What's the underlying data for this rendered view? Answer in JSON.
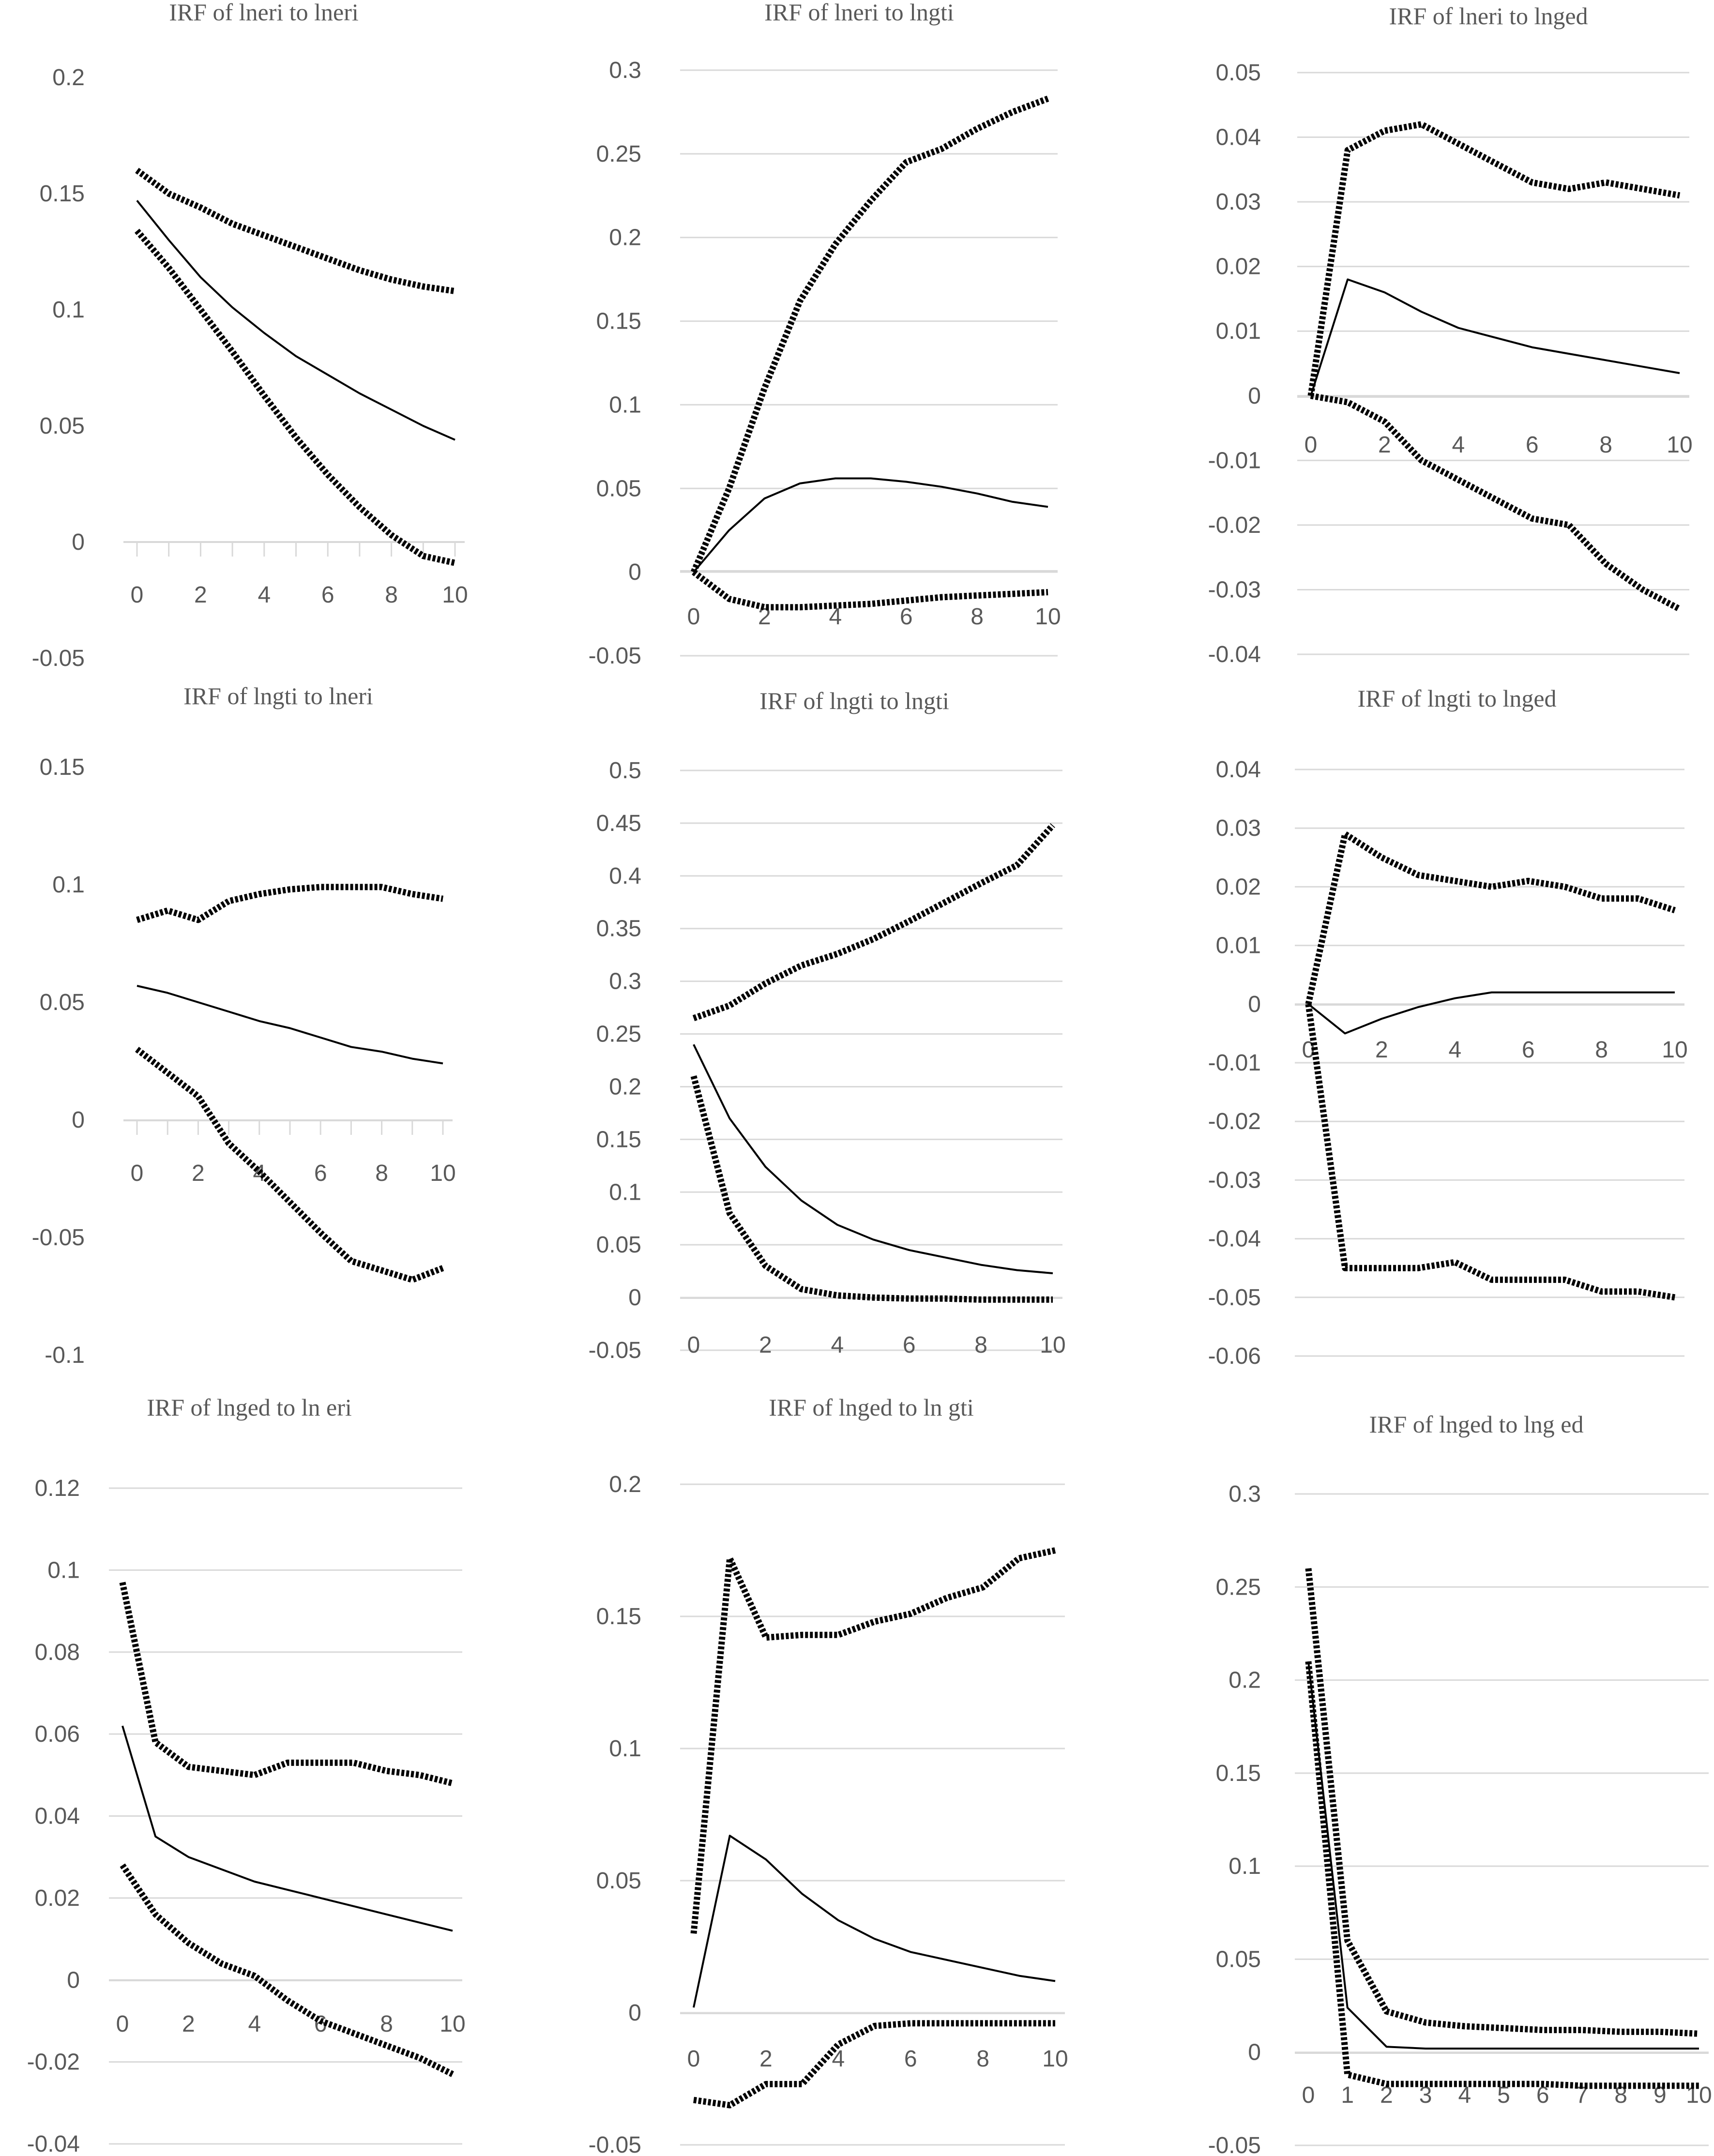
{
  "figure": {
    "accent_color": "#000000",
    "grid_color": "#d9d9d9",
    "tick_color": "#595959"
  },
  "chart_data": [
    {
      "type": "line",
      "title": "IRF of lneri to lneri",
      "x": [
        0,
        1,
        2,
        3,
        4,
        5,
        6,
        7,
        8,
        9,
        10
      ],
      "xticks": [
        0,
        2,
        4,
        6,
        8,
        10
      ],
      "ylim": [
        -0.05,
        0.2
      ],
      "yticks": [
        -0.05,
        0,
        0.05,
        0.1,
        0.15,
        0.2
      ],
      "ytick_labels": [
        "-0.05",
        "0",
        "0.05",
        "0.1",
        "0.15",
        "0.2"
      ],
      "grid": false,
      "series": [
        {
          "style": "solid",
          "values": [
            0.147,
            0.13,
            0.114,
            0.101,
            0.09,
            0.08,
            0.072,
            0.064,
            0.057,
            0.05,
            0.044
          ]
        },
        {
          "style": "dotted",
          "values": [
            0.16,
            0.15,
            0.144,
            0.137,
            0.132,
            0.127,
            0.122,
            0.117,
            0.113,
            0.11,
            0.108
          ]
        },
        {
          "style": "dotted",
          "values": [
            0.134,
            0.118,
            0.1,
            0.082,
            0.063,
            0.045,
            0.029,
            0.015,
            0.003,
            -0.006,
            -0.009
          ]
        }
      ]
    },
    {
      "type": "line",
      "title": "IRF of lneri to lngti",
      "x": [
        0,
        1,
        2,
        3,
        4,
        5,
        6,
        7,
        8,
        9,
        10
      ],
      "xticks": [
        0,
        2,
        4,
        6,
        8,
        10
      ],
      "ylim": [
        -0.05,
        0.3
      ],
      "yticks": [
        -0.05,
        0,
        0.05,
        0.1,
        0.15,
        0.2,
        0.25,
        0.3
      ],
      "ytick_labels": [
        "-0.05",
        "0",
        "0.05",
        "0.1",
        "0.15",
        "0.2",
        "0.25",
        "0.3"
      ],
      "grid": true,
      "series": [
        {
          "style": "solid",
          "values": [
            0,
            0.025,
            0.044,
            0.053,
            0.056,
            0.056,
            0.054,
            0.051,
            0.047,
            0.042,
            0.039
          ]
        },
        {
          "style": "dotted",
          "values": [
            0,
            0.05,
            0.11,
            0.162,
            0.196,
            0.222,
            0.245,
            0.253,
            0.265,
            0.275,
            0.283
          ]
        },
        {
          "style": "dotted",
          "values": [
            0,
            -0.016,
            -0.021,
            -0.021,
            -0.02,
            -0.019,
            -0.017,
            -0.015,
            -0.014,
            -0.013,
            -0.012
          ]
        }
      ]
    },
    {
      "type": "line",
      "title": "IRF of lneri to lnged",
      "x": [
        0,
        1,
        2,
        3,
        4,
        5,
        6,
        7,
        8,
        9,
        10
      ],
      "xticks": [
        0,
        2,
        4,
        6,
        8,
        10
      ],
      "ylim": [
        -0.04,
        0.05
      ],
      "yticks": [
        -0.04,
        -0.03,
        -0.02,
        -0.01,
        0,
        0.01,
        0.02,
        0.03,
        0.04,
        0.05
      ],
      "ytick_labels": [
        "-0.04",
        "-0.03",
        "-0.02",
        "-0.01",
        "0",
        "0.01",
        "0.02",
        "0.03",
        "0.04",
        "0.05"
      ],
      "grid": true,
      "series": [
        {
          "style": "solid",
          "values": [
            0,
            0.018,
            0.016,
            0.013,
            0.0105,
            0.009,
            0.0075,
            0.0065,
            0.0055,
            0.0045,
            0.0035
          ]
        },
        {
          "style": "dotted",
          "values": [
            0,
            0.038,
            0.041,
            0.042,
            0.039,
            0.036,
            0.033,
            0.032,
            0.033,
            0.032,
            0.031
          ]
        },
        {
          "style": "dotted",
          "values": [
            0,
            -0.001,
            -0.004,
            -0.01,
            -0.013,
            -0.016,
            -0.019,
            -0.02,
            -0.026,
            -0.03,
            -0.033
          ]
        }
      ]
    },
    {
      "type": "line",
      "title": "IRF of lngti  to lneri",
      "x": [
        0,
        1,
        2,
        3,
        4,
        5,
        6,
        7,
        8,
        9,
        10
      ],
      "xticks": [
        0,
        2,
        4,
        6,
        8,
        10
      ],
      "ylim": [
        -0.1,
        0.15
      ],
      "yticks": [
        -0.1,
        -0.05,
        0,
        0.05,
        0.1,
        0.15
      ],
      "ytick_labels": [
        "-0.1",
        "-0.05",
        "0",
        "0.05",
        "0.1",
        "0.15"
      ],
      "grid": false,
      "series": [
        {
          "style": "solid",
          "values": [
            0.057,
            0.054,
            0.05,
            0.046,
            0.042,
            0.039,
            0.035,
            0.031,
            0.029,
            0.026,
            0.024
          ]
        },
        {
          "style": "dotted",
          "values": [
            0.085,
            0.089,
            0.085,
            0.093,
            0.096,
            0.098,
            0.099,
            0.099,
            0.099,
            0.096,
            0.094
          ]
        },
        {
          "style": "dotted",
          "values": [
            0.03,
            0.02,
            0.01,
            -0.01,
            -0.022,
            -0.035,
            -0.048,
            -0.06,
            -0.064,
            -0.068,
            -0.063
          ]
        }
      ]
    },
    {
      "type": "line",
      "title": "IRF of lngti to lngti",
      "x": [
        0,
        1,
        2,
        3,
        4,
        5,
        6,
        7,
        8,
        9,
        10
      ],
      "xticks": [
        0,
        2,
        4,
        6,
        8,
        10
      ],
      "ylim": [
        -0.05,
        0.5
      ],
      "yticks": [
        -0.05,
        0,
        0.05,
        0.1,
        0.15,
        0.2,
        0.25,
        0.3,
        0.35,
        0.4,
        0.45,
        0.5
      ],
      "ytick_labels": [
        "-0.05",
        "0",
        "0.05",
        "0.1",
        "0.15",
        "0.2",
        "0.25",
        "0.3",
        "0.35",
        "0.4",
        "0.45",
        "0.5"
      ],
      "grid": true,
      "series": [
        {
          "style": "solid",
          "values": [
            0.24,
            0.17,
            0.124,
            0.092,
            0.069,
            0.055,
            0.045,
            0.038,
            0.031,
            0.026,
            0.023
          ]
        },
        {
          "style": "dotted",
          "values": [
            0.265,
            0.277,
            0.298,
            0.315,
            0.326,
            0.34,
            0.357,
            0.375,
            0.393,
            0.41,
            0.448
          ]
        },
        {
          "style": "dotted",
          "values": [
            0.21,
            0.08,
            0.03,
            0.008,
            0.002,
            0,
            -0.001,
            -0.001,
            -0.002,
            -0.002,
            -0.002
          ]
        }
      ]
    },
    {
      "type": "line",
      "title": "IRF of lngti to lnged",
      "x": [
        0,
        1,
        2,
        3,
        4,
        5,
        6,
        7,
        8,
        9,
        10
      ],
      "xticks": [
        0,
        2,
        4,
        6,
        8,
        10
      ],
      "ylim": [
        -0.06,
        0.04
      ],
      "yticks": [
        -0.06,
        -0.05,
        -0.04,
        -0.03,
        -0.02,
        -0.01,
        0,
        0.01,
        0.02,
        0.03,
        0.04
      ],
      "ytick_labels": [
        "-0.06",
        "-0.05",
        "-0.04",
        "-0.03",
        "-0.02",
        "-0.01",
        "0",
        "0.01",
        "0.02",
        "0.03",
        "0.04"
      ],
      "grid": true,
      "series": [
        {
          "style": "solid",
          "values": [
            0,
            -0.005,
            -0.0025,
            -0.0005,
            0.001,
            0.002,
            0.002,
            0.002,
            0.002,
            0.002,
            0.002
          ]
        },
        {
          "style": "dotted",
          "values": [
            0,
            0.029,
            0.025,
            0.022,
            0.021,
            0.02,
            0.021,
            0.02,
            0.018,
            0.018,
            0.016
          ]
        },
        {
          "style": "dotted",
          "values": [
            0,
            -0.045,
            -0.045,
            -0.045,
            -0.044,
            -0.047,
            -0.047,
            -0.047,
            -0.049,
            -0.049,
            -0.05
          ]
        }
      ]
    },
    {
      "type": "line",
      "title": "IRF of lnged to ln eri",
      "x": [
        0,
        1,
        2,
        3,
        4,
        5,
        6,
        7,
        8,
        9,
        10
      ],
      "xticks": [
        0,
        2,
        4,
        6,
        8,
        10
      ],
      "ylim": [
        -0.04,
        0.12
      ],
      "yticks": [
        -0.04,
        -0.02,
        0,
        0.02,
        0.04,
        0.06,
        0.08,
        0.1,
        0.12
      ],
      "ytick_labels": [
        "-0.04",
        "-0.02",
        "0",
        "0.02",
        "0.04",
        "0.06",
        "0.08",
        "0.1",
        "0.12"
      ],
      "grid": true,
      "series": [
        {
          "style": "solid",
          "values": [
            0.062,
            0.035,
            0.03,
            0.027,
            0.024,
            0.022,
            0.02,
            0.018,
            0.016,
            0.014,
            0.012
          ]
        },
        {
          "style": "dotted",
          "values": [
            0.097,
            0.058,
            0.052,
            0.051,
            0.05,
            0.053,
            0.053,
            0.053,
            0.051,
            0.05,
            0.048
          ]
        },
        {
          "style": "dotted",
          "values": [
            0.028,
            0.016,
            0.009,
            0.004,
            0.001,
            -0.005,
            -0.01,
            -0.013,
            -0.016,
            -0.019,
            -0.023
          ]
        }
      ]
    },
    {
      "type": "line",
      "title": "IRF of lnged to ln gti",
      "x": [
        0,
        1,
        2,
        3,
        4,
        5,
        6,
        7,
        8,
        9,
        10
      ],
      "xticks": [
        0,
        2,
        4,
        6,
        8,
        10
      ],
      "ylim": [
        -0.05,
        0.2
      ],
      "yticks": [
        -0.05,
        0,
        0.05,
        0.1,
        0.15,
        0.2
      ],
      "ytick_labels": [
        "-0.05",
        "0",
        "0.05",
        "0.1",
        "0.15",
        "0.2"
      ],
      "grid": true,
      "series": [
        {
          "style": "solid",
          "values": [
            0.002,
            0.067,
            0.058,
            0.045,
            0.035,
            0.028,
            0.023,
            0.02,
            0.017,
            0.014,
            0.012
          ]
        },
        {
          "style": "dotted",
          "values": [
            0.03,
            0.172,
            0.142,
            0.143,
            0.143,
            0.148,
            0.151,
            0.157,
            0.161,
            0.172,
            0.175
          ]
        },
        {
          "style": "dotted",
          "values": [
            -0.033,
            -0.035,
            -0.027,
            -0.027,
            -0.012,
            -0.005,
            -0.004,
            -0.004,
            -0.004,
            -0.004,
            -0.004
          ]
        }
      ]
    },
    {
      "type": "line",
      "title": "IRF of lnged to lng ed",
      "x": [
        0,
        1,
        2,
        3,
        4,
        5,
        6,
        7,
        8,
        9,
        10
      ],
      "xticks": [
        0,
        1,
        2,
        3,
        4,
        5,
        6,
        7,
        8,
        9,
        10
      ],
      "ylim": [
        -0.05,
        0.3
      ],
      "yticks": [
        -0.05,
        0,
        0.05,
        0.1,
        0.15,
        0.2,
        0.25,
        0.3
      ],
      "ytick_labels": [
        "-0.05",
        "0",
        "0.05",
        "0.1",
        "0.15",
        "0.2",
        "0.25",
        "0.3"
      ],
      "grid": true,
      "series": [
        {
          "style": "solid",
          "values": [
            0.21,
            0.024,
            0.003,
            0.002,
            0.002,
            0.002,
            0.002,
            0.002,
            0.002,
            0.002,
            0.002
          ]
        },
        {
          "style": "dotted",
          "values": [
            0.26,
            0.06,
            0.022,
            0.016,
            0.014,
            0.013,
            0.012,
            0.012,
            0.011,
            0.011,
            0.01
          ]
        },
        {
          "style": "dotted",
          "values": [
            0.21,
            -0.012,
            -0.017,
            -0.017,
            -0.017,
            -0.017,
            -0.017,
            -0.018,
            -0.018,
            -0.018,
            -0.018
          ]
        }
      ]
    }
  ]
}
